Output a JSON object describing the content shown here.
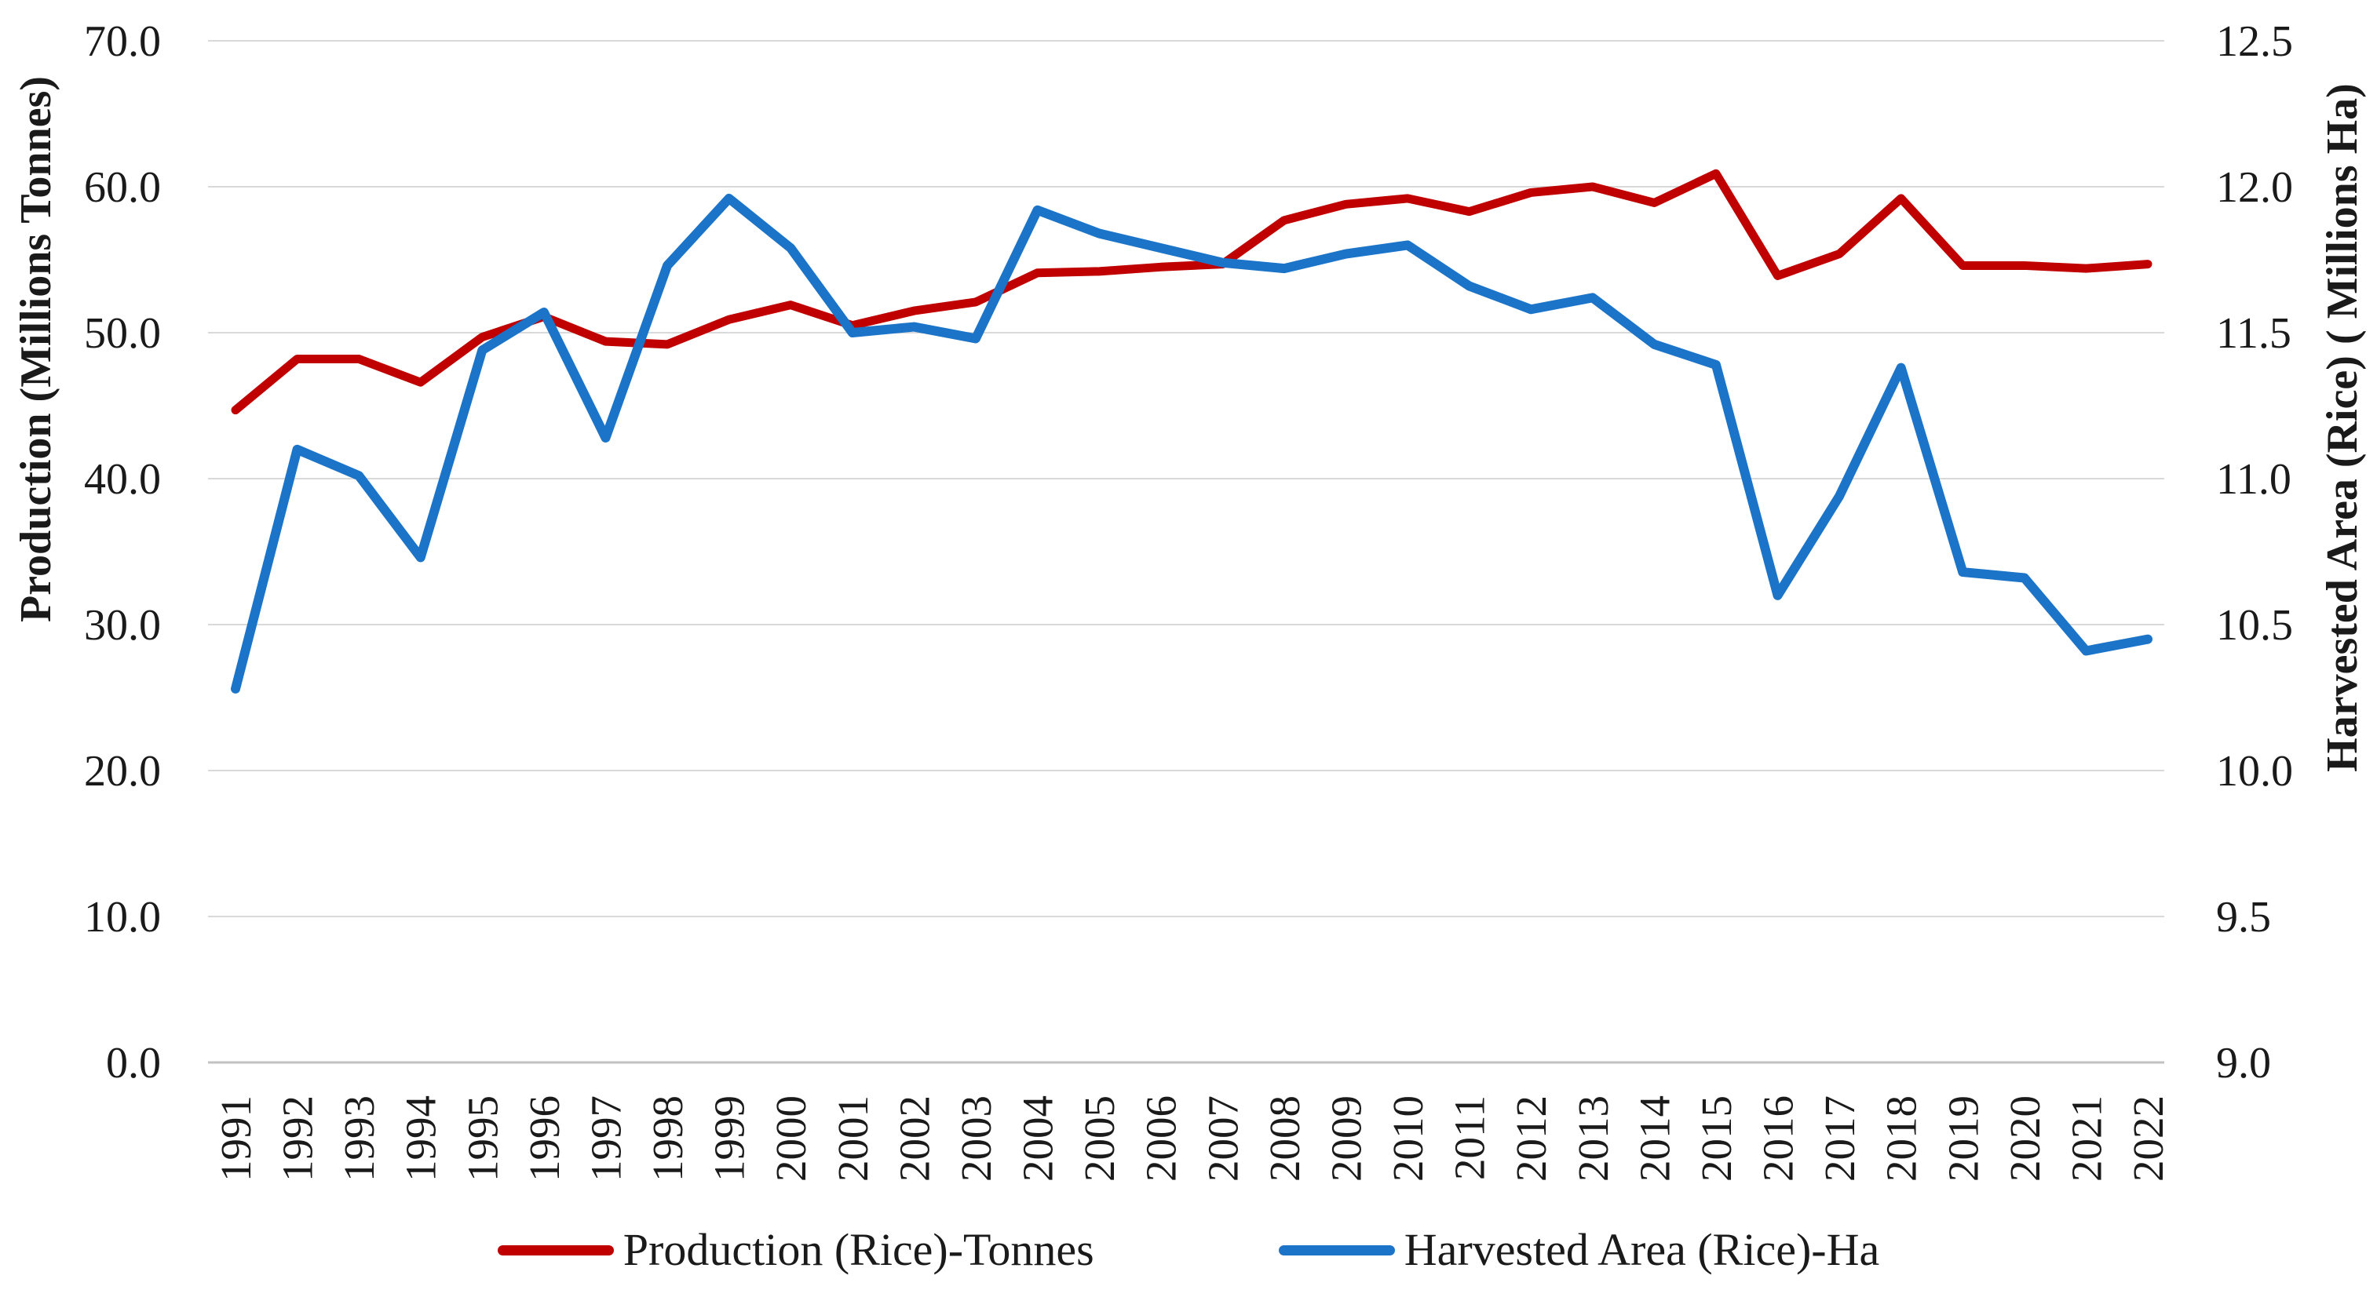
{
  "figure": {
    "background": "#FFFFFF"
  },
  "chart_data": {
    "type": "line",
    "title": "",
    "grid": true,
    "legend_position": "bottom",
    "x_label_rotation": -90,
    "x": [
      "1991",
      "1992",
      "1993",
      "1994",
      "1995",
      "1996",
      "1997",
      "1998",
      "1999",
      "2000",
      "2001",
      "2002",
      "2003",
      "2004",
      "2005",
      "2006",
      "2007",
      "2008",
      "2009",
      "2010",
      "2011",
      "2012",
      "2013",
      "2014",
      "2015",
      "2016",
      "2017",
      "2018",
      "2019",
      "2020",
      "2021",
      "2022"
    ],
    "left_axis": {
      "label": "Production (Millions Tonnes)",
      "min": 0,
      "max": 70,
      "step": 10,
      "ticks": [
        "70.0",
        "60.0",
        "50.0",
        "40.0",
        "30.0",
        "20.0",
        "10.0",
        "0.0"
      ]
    },
    "right_axis": {
      "label": "Harvested Area (Rice) ( Millions Ha)",
      "min": 9.0,
      "max": 12.5,
      "step": 0.5,
      "ticks": [
        "12.5",
        "12.0",
        "11.5",
        "11.0",
        "10.5",
        "10.0",
        "9.5",
        "9.0"
      ]
    },
    "series": [
      {
        "id": "production",
        "name": "Production (Rice)-Tonnes",
        "axis": "left",
        "color": "#C00000",
        "values": [
          44.7,
          48.2,
          48.2,
          46.6,
          49.7,
          51.1,
          49.4,
          49.2,
          50.9,
          51.9,
          50.5,
          51.5,
          52.1,
          54.1,
          54.2,
          54.5,
          54.7,
          57.7,
          58.8,
          59.2,
          58.3,
          59.6,
          60.0,
          58.9,
          60.9,
          53.9,
          55.4,
          59.2,
          54.6,
          54.6,
          54.4,
          54.7
        ]
      },
      {
        "id": "harvested-area",
        "name": "Harvested Area (Rice)-Ha",
        "axis": "right",
        "color": "#1B74C8",
        "values": [
          10.28,
          11.1,
          11.01,
          10.73,
          11.44,
          11.57,
          11.14,
          11.73,
          11.96,
          11.79,
          11.5,
          11.52,
          11.48,
          11.92,
          11.84,
          11.79,
          11.74,
          11.72,
          11.77,
          11.8,
          11.66,
          11.58,
          11.62,
          11.46,
          11.39,
          10.6,
          10.94,
          11.38,
          10.68,
          10.66,
          10.41,
          10.45
        ]
      }
    ]
  },
  "legend": {
    "items": [
      {
        "label": "Production (Rice)-Tonnes",
        "color": "#C00000"
      },
      {
        "label": "Harvested Area (Rice)-Ha",
        "color": "#1B74C8"
      }
    ]
  },
  "colors": {
    "grid": "#D9D9D9",
    "axis_line": "#C2C2C2",
    "text": "#1A1A1A",
    "production": "#C00000",
    "harvested_area": "#1B74C8"
  }
}
